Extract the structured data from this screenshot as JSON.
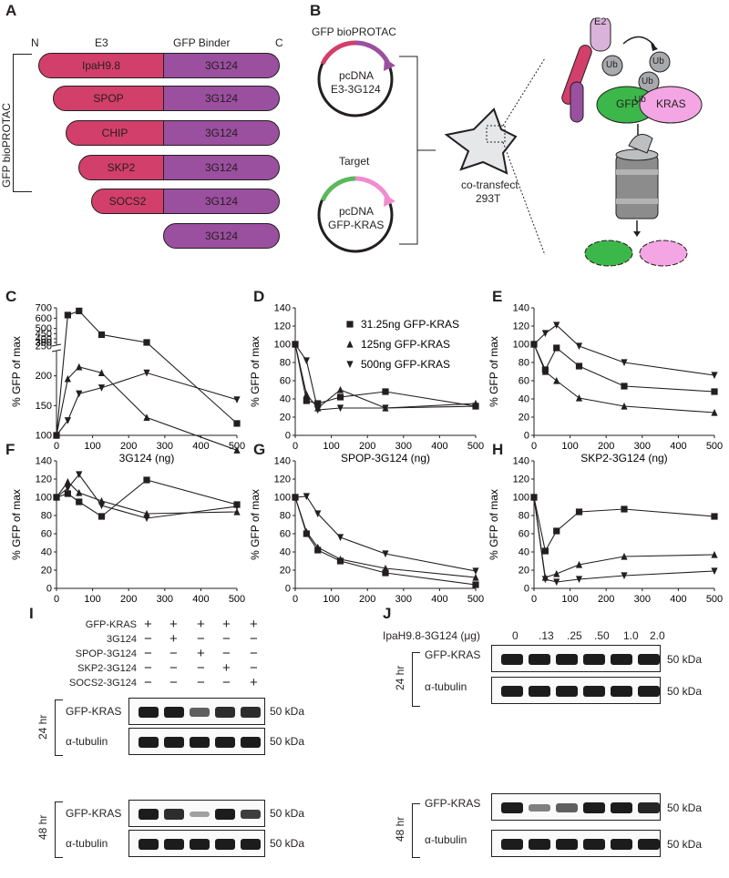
{
  "panel_labels": {
    "A": "A",
    "B": "B",
    "C": "C",
    "D": "D",
    "E": "E",
    "F": "F",
    "G": "G",
    "H": "H",
    "I": "I",
    "J": "J"
  },
  "panelA": {
    "n_term": "N",
    "e3_header": "E3",
    "binder_header": "GFP Binder",
    "c_term": "C",
    "side_label": "GFP bioPROTAC",
    "rows": [
      {
        "e3": "IpaH9.8",
        "binder": "3G124"
      },
      {
        "e3": "SPOP",
        "binder": "3G124"
      },
      {
        "e3": "CHIP",
        "binder": "3G124"
      },
      {
        "e3": "SKP2",
        "binder": "3G124"
      },
      {
        "e3": "SOCS2",
        "binder": "3G124"
      },
      {
        "e3": "",
        "binder": "3G124"
      }
    ]
  },
  "panelB": {
    "plasmid1_title": "GFP bioPROTAC",
    "plasmid1_line1": "pcDNA",
    "plasmid1_line2": "E3-3G124",
    "plasmid2_title": "Target",
    "plasmid2_line1": "pcDNA",
    "plasmid2_line2": "GFP-KRAS",
    "cell_line1": "co-transfect",
    "cell_line2": "293T",
    "e2": "E2",
    "ub": "Ub",
    "gfp": "GFP",
    "kras": "KRAS"
  },
  "chart_data": [
    {
      "id": "C",
      "type": "line",
      "xlabel": "3G124 (ng)",
      "ylabel": "% GFP of max",
      "broken_axis": true,
      "x": [
        0,
        31.25,
        62.5,
        125,
        250,
        500
      ],
      "yticks": [
        100,
        150,
        200,
        250,
        300,
        350,
        400,
        450,
        500,
        600,
        700
      ],
      "series": [
        {
          "name": "31.25ng GFP-KRAS",
          "marker": "square",
          "values": [
            100,
            630,
            670,
            440,
            260,
            120
          ]
        },
        {
          "name": "125ng GFP-KRAS",
          "marker": "triangle-up",
          "values": [
            100,
            195,
            215,
            205,
            130,
            75
          ]
        },
        {
          "name": "500ng GFP-KRAS",
          "marker": "triangle-down",
          "values": [
            100,
            125,
            170,
            180,
            205,
            160
          ]
        }
      ]
    },
    {
      "id": "D",
      "type": "line",
      "xlabel": "SPOP-3G124 (ng)",
      "ylabel": "% GFP of max",
      "ylim": [
        0,
        140
      ],
      "x": [
        0,
        31.25,
        62.5,
        125,
        250,
        500
      ],
      "legend": [
        "31.25ng GFP-KRAS",
        "125ng GFP-KRAS",
        "500ng GFP-KRAS"
      ],
      "series": [
        {
          "name": "31.25ng GFP-KRAS",
          "marker": "square",
          "values": [
            100,
            38,
            35,
            42,
            48,
            32
          ]
        },
        {
          "name": "125ng GFP-KRAS",
          "marker": "triangle-up",
          "values": [
            100,
            45,
            30,
            50,
            30,
            35
          ]
        },
        {
          "name": "500ng GFP-KRAS",
          "marker": "triangle-down",
          "values": [
            100,
            82,
            28,
            30,
            30,
            32
          ]
        }
      ]
    },
    {
      "id": "E",
      "type": "line",
      "xlabel": "SKP2-3G124 (ng)",
      "ylabel": "% GFP of max",
      "ylim": [
        0,
        140
      ],
      "x": [
        0,
        31.25,
        62.5,
        125,
        250,
        500
      ],
      "series": [
        {
          "name": "31.25ng GFP-KRAS",
          "marker": "square",
          "values": [
            100,
            72,
            96,
            76,
            54,
            48
          ]
        },
        {
          "name": "125ng GFP-KRAS",
          "marker": "triangle-up",
          "values": [
            100,
            70,
            60,
            41,
            32,
            25
          ]
        },
        {
          "name": "500ng GFP-KRAS",
          "marker": "triangle-down",
          "values": [
            100,
            112,
            121,
            98,
            80,
            66
          ]
        }
      ]
    },
    {
      "id": "F",
      "type": "line",
      "xlabel": "CHIP-3G124 (ng)",
      "ylabel": "% GFP of max",
      "ylim": [
        0,
        140
      ],
      "x": [
        0,
        31.25,
        62.5,
        125,
        250,
        500
      ],
      "series": [
        {
          "name": "31.25ng GFP-KRAS",
          "marker": "square",
          "values": [
            100,
            104,
            95,
            79,
            119,
            92
          ]
        },
        {
          "name": "125ng GFP-KRAS",
          "marker": "triangle-up",
          "values": [
            100,
            117,
            105,
            96,
            82,
            84
          ]
        },
        {
          "name": "500ng GFP-KRAS",
          "marker": "triangle-down",
          "values": [
            100,
            110,
            125,
            91,
            77,
            90
          ]
        }
      ]
    },
    {
      "id": "G",
      "type": "line",
      "xlabel": "SOCS2-3G124 (ng)",
      "ylabel": "% GFP of max",
      "ylim": [
        0,
        140
      ],
      "x": [
        0,
        31.25,
        62.5,
        125,
        250,
        500
      ],
      "series": [
        {
          "name": "31.25ng GFP-KRAS",
          "marker": "square",
          "values": [
            100,
            60,
            42,
            30,
            17,
            4
          ]
        },
        {
          "name": "125ng GFP-KRAS",
          "marker": "triangle-up",
          "values": [
            100,
            62,
            45,
            32,
            22,
            12
          ]
        },
        {
          "name": "500ng GFP-KRAS",
          "marker": "triangle-down",
          "values": [
            100,
            101,
            82,
            56,
            38,
            19
          ]
        }
      ]
    },
    {
      "id": "H",
      "type": "line",
      "xlabel": "IpaH9.8-3G124 (ng)",
      "ylabel": "% GFP of max",
      "ylim": [
        0,
        140
      ],
      "x": [
        0,
        31.25,
        62.5,
        125,
        250,
        500
      ],
      "series": [
        {
          "name": "31.25ng GFP-KRAS",
          "marker": "square",
          "values": [
            100,
            41,
            63,
            84,
            87,
            79
          ]
        },
        {
          "name": "125ng GFP-KRAS",
          "marker": "triangle-up",
          "values": [
            100,
            12,
            16,
            26,
            35,
            37
          ]
        },
        {
          "name": "500ng GFP-KRAS",
          "marker": "triangle-down",
          "values": [
            100,
            10,
            7,
            10,
            14,
            19
          ]
        }
      ]
    }
  ],
  "panelI": {
    "conditions": [
      {
        "label": "GFP-KRAS",
        "marks": [
          "+",
          "+",
          "+",
          "+",
          "+"
        ]
      },
      {
        "label": "3G124",
        "marks": [
          "−",
          "+",
          "−",
          "−",
          "−"
        ]
      },
      {
        "label": "SPOP-3G124",
        "marks": [
          "−",
          "−",
          "+",
          "−",
          "−"
        ]
      },
      {
        "label": "SKP2-3G124",
        "marks": [
          "−",
          "−",
          "−",
          "+",
          "−"
        ]
      },
      {
        "label": "SOCS2-3G124",
        "marks": [
          "−",
          "−",
          "−",
          "−",
          "+"
        ]
      }
    ],
    "time1": "24 hr",
    "time2": "48 hr",
    "blot_gfp": "GFP-KRAS",
    "blot_tub": "α-tubulin",
    "kda": "50 kDa",
    "gfp24_levels": [
      1.0,
      1.0,
      0.6,
      0.9,
      0.9
    ],
    "gfp48_levels": [
      1.0,
      0.9,
      0.2,
      1.0,
      0.8
    ]
  },
  "panelJ": {
    "header": "IpaH9.8-3G124 (μg)",
    "doses": [
      "0",
      ".13",
      ".25",
      ".50",
      "1.0",
      "2.0"
    ],
    "time1": "24 hr",
    "time2": "48 hr",
    "blot_gfp": "GFP-KRAS",
    "blot_tub": "α-tubulin",
    "kda": "50 kDa",
    "gfp48_levels": [
      1.0,
      0.4,
      0.6,
      1.0,
      1.0,
      0.95
    ]
  }
}
